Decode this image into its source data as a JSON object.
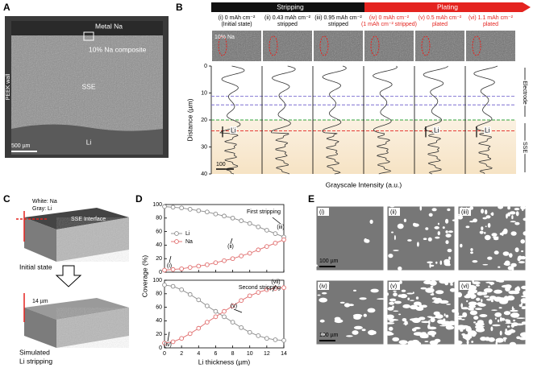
{
  "panel_a": {
    "label": "A",
    "metal": "Metal Na",
    "composite": "10% Na composite",
    "wall": "PEEK wall",
    "sse": "SSE",
    "li": "Li",
    "scale": "500 µm"
  },
  "panel_b": {
    "label": "B",
    "stripping": "Stripping",
    "plating": "Plating",
    "columns": [
      {
        "title": "(i) 0 mAh cm⁻²",
        "subtitle": "(Initial state)"
      },
      {
        "title": "(ii) 0.43 mAh cm⁻²",
        "subtitle": "stripped"
      },
      {
        "title": "(iii) 0.95 mAh cm⁻²",
        "subtitle": "stripped"
      },
      {
        "title": "(iv) 0 mAh cm⁻²",
        "subtitle": "(1 mAh cm⁻² stripped)"
      },
      {
        "title": "(v) 0.5 mAh cm⁻²",
        "subtitle": "plated"
      },
      {
        "title": "(vi) 1.1 mAh cm⁻²",
        "subtitle": "plated"
      }
    ],
    "inset_label": "10% Na",
    "y_label": "Distance (µm)",
    "x_label": "Grayscale Intensity (a.u.)",
    "ylim": [
      0,
      40
    ],
    "yticks": [
      0,
      10,
      20,
      30,
      40
    ],
    "electrode": "Electrode",
    "sse": "SSE",
    "li": "Li",
    "scale": "100"
  },
  "panel_c": {
    "label": "C",
    "white": "White: Na",
    "gray": "Gray: Li",
    "interface": "SSE Interface",
    "initial": "Initial state",
    "depth": "14 µm",
    "simulated": "Simulated",
    "stripping": "Li stripping"
  },
  "panel_d": {
    "label": "D"
  },
  "chart_data": [
    {
      "type": "line",
      "title": "First stripping",
      "ylabel": "Coverage (%)",
      "x": [
        0,
        1,
        2,
        3,
        4,
        5,
        6,
        7,
        8,
        9,
        10,
        11,
        12,
        13,
        14
      ],
      "series": [
        {
          "name": "Li",
          "color": "#8a8a8a",
          "values": [
            97,
            96,
            95,
            93,
            91,
            89,
            86,
            83,
            80,
            76,
            72,
            67,
            62,
            57,
            52
          ]
        },
        {
          "name": "Na",
          "color": "#e06a6a",
          "values": [
            3,
            4,
            5,
            7,
            9,
            11,
            14,
            17,
            20,
            24,
            28,
            33,
            38,
            43,
            48
          ]
        }
      ],
      "xlim": [
        0,
        14
      ],
      "ylim": [
        0,
        100
      ],
      "xticks": [
        0,
        2,
        4,
        6,
        8,
        10,
        12,
        14
      ],
      "yticks": [
        0,
        20,
        40,
        60,
        80,
        100
      ],
      "annotations": [
        "(i)",
        "(ii)",
        "(iii)"
      ]
    },
    {
      "type": "line",
      "title": "Second stripping",
      "xlabel": "Li thickness (µm)",
      "x": [
        0,
        1,
        2,
        3,
        4,
        5,
        6,
        7,
        8,
        9,
        10,
        11,
        12,
        13,
        14
      ],
      "series": [
        {
          "name": "Li",
          "color": "#8a8a8a",
          "values": [
            93,
            91,
            86,
            79,
            71,
            62,
            54,
            46,
            38,
            30,
            23,
            18,
            14,
            12,
            11
          ]
        },
        {
          "name": "Na",
          "color": "#e06a6a",
          "values": [
            7,
            9,
            14,
            21,
            29,
            38,
            46,
            54,
            62,
            70,
            77,
            82,
            86,
            88,
            89
          ]
        }
      ],
      "xlim": [
        0,
        14
      ],
      "ylim": [
        0,
        100
      ],
      "xticks": [
        0,
        2,
        4,
        6,
        8,
        10,
        12,
        14
      ],
      "yticks": [
        0,
        20,
        40,
        60,
        80,
        100
      ],
      "annotations": [
        "(iv)",
        "(v)",
        "(vii)"
      ]
    }
  ],
  "panel_e": {
    "label": "E",
    "tiles": [
      "(i)",
      "(ii)",
      "(iii)",
      "(iv)",
      "(v)",
      "(vi)"
    ],
    "scale": "100 µm"
  }
}
